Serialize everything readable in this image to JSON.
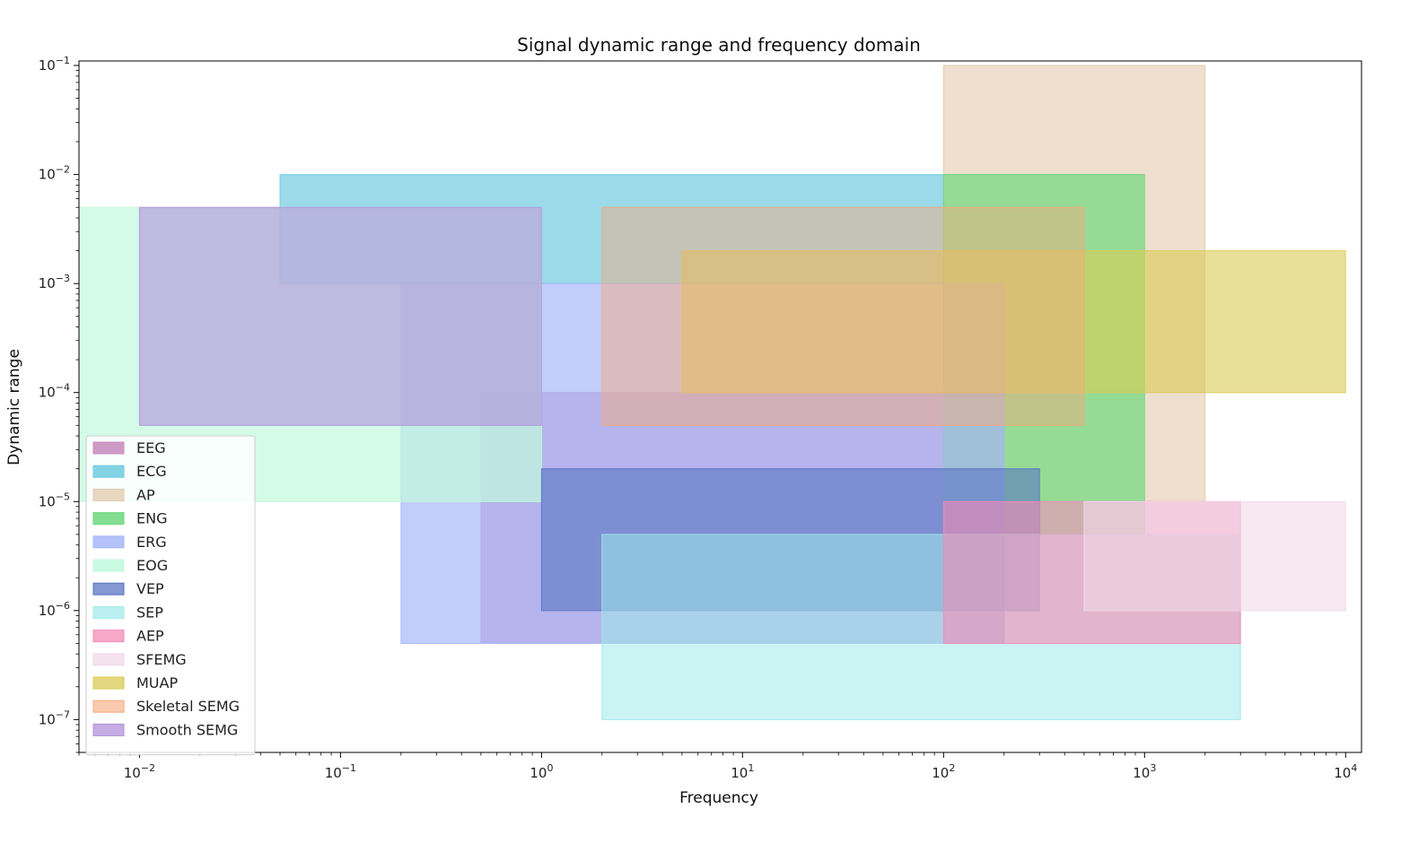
{
  "chart_data": {
    "type": "area",
    "title": "Signal dynamic range and frequency domain",
    "xlabel": "Frequency",
    "ylabel": "Dynamic range",
    "xscale": "log",
    "yscale": "log",
    "xlim": [
      0.005,
      12000
    ],
    "ylim": [
      5e-08,
      0.11
    ],
    "grid": false,
    "legend_position": "lower-left",
    "x_tick_labels": [
      {
        "value": 0.01,
        "base": "10",
        "exp": "−2"
      },
      {
        "value": 0.1,
        "base": "10",
        "exp": "−1"
      },
      {
        "value": 1,
        "base": "10",
        "exp": "0"
      },
      {
        "value": 10,
        "base": "10",
        "exp": "1"
      },
      {
        "value": 100,
        "base": "10",
        "exp": "2"
      },
      {
        "value": 1000,
        "base": "10",
        "exp": "3"
      },
      {
        "value": 10000,
        "base": "10",
        "exp": "4"
      }
    ],
    "y_tick_labels": [
      {
        "value": 1e-07,
        "base": "10",
        "exp": "−7"
      },
      {
        "value": 1e-06,
        "base": "10",
        "exp": "−6"
      },
      {
        "value": 1e-05,
        "base": "10",
        "exp": "−5"
      },
      {
        "value": 0.0001,
        "base": "10",
        "exp": "−4"
      },
      {
        "value": 0.001,
        "base": "10",
        "exp": "−3"
      },
      {
        "value": 0.01,
        "base": "10",
        "exp": "−2"
      },
      {
        "value": 0.1,
        "base": "10",
        "exp": "−1"
      }
    ],
    "series": [
      {
        "name": "EEG",
        "x": [
          0.5,
          200
        ],
        "y": [
          5e-07,
          0.0001
        ],
        "color": "#c990c0",
        "alpha": 0.75
      },
      {
        "name": "ECG",
        "x": [
          0.05,
          100
        ],
        "y": [
          0.001,
          0.01
        ],
        "color": "#6fcbe0",
        "alpha": 0.7
      },
      {
        "name": "AP",
        "x": [
          100,
          2000
        ],
        "y": [
          1e-05,
          0.1
        ],
        "color": "#e2c9ae",
        "alpha": 0.6
      },
      {
        "name": "ENG",
        "x": [
          100,
          1000
        ],
        "y": [
          5e-06,
          0.01
        ],
        "color": "#6fd87e",
        "alpha": 0.7
      },
      {
        "name": "ERG",
        "x": [
          0.2,
          200
        ],
        "y": [
          5e-07,
          0.001
        ],
        "color": "#a6b8f8",
        "alpha": 0.7
      },
      {
        "name": "EOG",
        "x": [
          0.005,
          1
        ],
        "y": [
          1e-05,
          0.005
        ],
        "color": "#c2f9dd",
        "alpha": 0.7
      },
      {
        "name": "VEP",
        "x": [
          1,
          300
        ],
        "y": [
          1e-06,
          2e-05
        ],
        "color": "#5a74c3",
        "alpha": 0.6
      },
      {
        "name": "SEP",
        "x": [
          2,
          3000
        ],
        "y": [
          1e-07,
          5e-06
        ],
        "color": "#9feaea",
        "alpha": 0.55
      },
      {
        "name": "AEP",
        "x": [
          100,
          3000
        ],
        "y": [
          5e-07,
          1e-05
        ],
        "color": "#f48bb6",
        "alpha": 0.6
      },
      {
        "name": "SFEMG",
        "x": [
          500,
          10000
        ],
        "y": [
          1e-06,
          1e-05
        ],
        "color": "#f1d8ea",
        "alpha": 0.6
      },
      {
        "name": "MUAP",
        "x": [
          5,
          10000
        ],
        "y": [
          0.0001,
          0.002
        ],
        "color": "#dacb54",
        "alpha": 0.6
      },
      {
        "name": "Skeletal SEMG",
        "x": [
          2,
          500
        ],
        "y": [
          5e-05,
          0.005
        ],
        "color": "#f6a97a",
        "alpha": 0.45
      },
      {
        "name": "Smooth SEMG",
        "x": [
          0.01,
          1
        ],
        "y": [
          5e-05,
          0.005
        ],
        "color": "#b190dc",
        "alpha": 0.6
      }
    ]
  }
}
